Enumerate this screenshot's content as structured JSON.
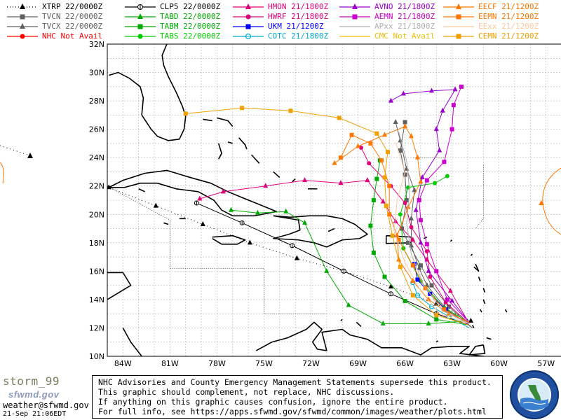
{
  "legend": [
    {
      "label": "XTRP 22/0000Z",
      "color": "#000000",
      "marker": "tri",
      "dash": "1,3"
    },
    {
      "label": "TVCN 22/0000Z",
      "color": "#606060",
      "marker": "sq",
      "dash": ""
    },
    {
      "label": "TVCX 22/0000Z",
      "color": "#606060",
      "marker": "tri",
      "dash": ""
    },
    {
      "label": "NHC Not Avail",
      "color": "#ff0000",
      "marker": "circ",
      "dash": ""
    },
    {
      "label": "CLP5 22/0000Z",
      "color": "#000000",
      "marker": "clp",
      "dash": ""
    },
    {
      "label": "TABD 22/0000Z",
      "color": "#00aa00",
      "marker": "tri",
      "dash": ""
    },
    {
      "label": "TABM 22/0000Z",
      "color": "#00aa00",
      "marker": "sq",
      "dash": ""
    },
    {
      "label": "TABS 22/0000Z",
      "color": "#00cc00",
      "marker": "circ",
      "dash": ""
    },
    {
      "label": "HMON 21/1800Z",
      "color": "#e0007a",
      "marker": "tri",
      "dash": ""
    },
    {
      "label": "HWRF 21/1800Z",
      "color": "#e0007a",
      "marker": "circ",
      "dash": ""
    },
    {
      "label": "UKM  21/1200Z",
      "color": "#0000ff",
      "marker": "sq",
      "dash": ""
    },
    {
      "label": "COTC 21/1800Z",
      "color": "#00aacc",
      "marker": "ring",
      "dash": ""
    },
    {
      "label": "AVNO 21/1800Z",
      "color": "#9900cc",
      "marker": "tri",
      "dash": ""
    },
    {
      "label": "AEMN 21/1800Z",
      "color": "#cc00cc",
      "marker": "sq",
      "dash": ""
    },
    {
      "label": "APxx 21/1800Z",
      "color": "#b0b0b0",
      "marker": "none",
      "dash": ""
    },
    {
      "label": "CMC  Not Avail",
      "color": "#f0c000",
      "marker": "none",
      "dash": ""
    },
    {
      "label": "EECF 21/1200Z",
      "color": "#ff7700",
      "marker": "tri",
      "dash": ""
    },
    {
      "label": "EEMN 21/1200Z",
      "color": "#ff7700",
      "marker": "sq",
      "dash": ""
    },
    {
      "label": "EExx 21/1200Z",
      "color": "#ffc8a0",
      "marker": "none",
      "dash": ""
    },
    {
      "label": "CEMN 21/1200Z",
      "color": "#f0a000",
      "marker": "sq",
      "dash": ""
    }
  ],
  "axes": {
    "lon_labels": [
      "84W",
      "81W",
      "78W",
      "75W",
      "72W",
      "69W",
      "66W",
      "63W",
      "60W",
      "57W"
    ],
    "lat_labels": [
      "32N",
      "30N",
      "28N",
      "26N",
      "24N",
      "22N",
      "20N",
      "18N",
      "16N",
      "14N",
      "12N",
      "10N"
    ],
    "lon_range": [
      -85,
      -56
    ],
    "lat_range": [
      10,
      32
    ]
  },
  "footer": {
    "line1": "NHC Advisories and County Emergency Management Statements supersede this product.",
    "line2": "This graphic should complement, not replace, NHC discussions.",
    "line3": "If anything on this graphic causes confusion, ignore the entire product.",
    "line4": "For full info, see  https://apps.sfwmd.gov/sfwmd/common/images/weather/plots.html"
  },
  "storm_name": "storm_99",
  "brand": "sfwmd.gov",
  "email": "weather@sfwmd.gov",
  "timestamp": "21-Sep 21:06EDT",
  "seal_icon": "south-florida-water-management-district-seal",
  "tracks": [
    {
      "model": "XTRP",
      "color": "#000000",
      "dash": "1,4",
      "marker": "tri",
      "pts": [
        [
          -88.2,
          23.5
        ],
        [
          -86.2,
          24.1
        ],
        [
          -84.9,
          21.9
        ],
        [
          -81.9,
          20.6
        ],
        [
          -78.9,
          19.3
        ],
        [
          -75.9,
          18.0
        ],
        [
          -72.9,
          16.9
        ],
        [
          -69.9,
          16.0
        ],
        [
          -66.9,
          14.9
        ],
        [
          -64.0,
          13.7
        ],
        [
          -61.8,
          12.5
        ]
      ]
    },
    {
      "model": "CLP5",
      "color": "#000000",
      "dash": "",
      "marker": "clp",
      "pts": [
        [
          -61.9,
          12.2
        ],
        [
          -64.0,
          13.0
        ],
        [
          -66.9,
          14.4
        ],
        [
          -69.9,
          16.0
        ],
        [
          -73.2,
          17.8
        ],
        [
          -76.4,
          19.4
        ],
        [
          -79.3,
          20.8
        ]
      ]
    },
    {
      "model": "TVCN",
      "color": "#606060",
      "dash": "",
      "marker": "sq",
      "pts": [
        [
          -61.7,
          12.0
        ],
        [
          -63.2,
          13.5
        ],
        [
          -64.3,
          15.0
        ],
        [
          -65.0,
          16.4
        ],
        [
          -65.8,
          18.0
        ],
        [
          -66.2,
          19.0
        ],
        [
          -65.9,
          21.0
        ],
        [
          -66.0,
          22.8
        ],
        [
          -66.3,
          24.5
        ],
        [
          -66.0,
          26.5
        ]
      ]
    },
    {
      "model": "TVCX",
      "color": "#606060",
      "dash": "",
      "marker": "tri",
      "pts": [
        [
          -61.7,
          12.0
        ],
        [
          -63.5,
          13.5
        ],
        [
          -64.6,
          15.0
        ],
        [
          -65.1,
          16.2
        ],
        [
          -65.6,
          17.8
        ],
        [
          -65.6,
          19.7
        ],
        [
          -65.4,
          21.7
        ],
        [
          -65.9,
          23.2
        ],
        [
          -66.3,
          25.2
        ],
        [
          -66.6,
          26.5
        ]
      ]
    },
    {
      "model": "TABD",
      "color": "#00aa00",
      "dash": "",
      "marker": "tri",
      "pts": [
        [
          -61.9,
          12.5
        ],
        [
          -64.5,
          12.3
        ],
        [
          -67.4,
          12.3
        ],
        [
          -69.6,
          13.6
        ],
        [
          -71.0,
          16.0
        ],
        [
          -72.4,
          19.4
        ],
        [
          -73.6,
          20.2
        ],
        [
          -75.4,
          20.1
        ],
        [
          -77.1,
          20.3
        ]
      ]
    },
    {
      "model": "TABM",
      "color": "#00aa00",
      "dash": "",
      "marker": "sq",
      "pts": [
        [
          -61.9,
          12.2
        ],
        [
          -64.0,
          12.6
        ],
        [
          -66.0,
          13.9
        ],
        [
          -67.3,
          15.6
        ],
        [
          -68.0,
          17.3
        ],
        [
          -68.2,
          19.2
        ],
        [
          -68.0,
          21.0
        ],
        [
          -67.8,
          22.5
        ],
        [
          -67.6,
          23.8
        ]
      ]
    },
    {
      "model": "TABS",
      "color": "#00cc00",
      "dash": "",
      "marker": "circ",
      "pts": [
        [
          -61.9,
          12.4
        ],
        [
          -63.5,
          13.4
        ],
        [
          -65.0,
          15.3
        ],
        [
          -66.1,
          17.6
        ],
        [
          -66.3,
          20.0
        ],
        [
          -65.8,
          21.9
        ],
        [
          -64.1,
          22.2
        ],
        [
          -63.3,
          22.7
        ]
      ]
    },
    {
      "model": "HMON",
      "color": "#e0007a",
      "dash": "",
      "marker": "tri",
      "pts": [
        [
          -61.9,
          12.3
        ],
        [
          -63.1,
          14.6
        ],
        [
          -64.6,
          16.8
        ],
        [
          -65.5,
          18.2
        ],
        [
          -66.6,
          19.5
        ],
        [
          -67.4,
          20.9
        ],
        [
          -68.4,
          22.4
        ],
        [
          -70.1,
          22.2
        ],
        [
          -72.4,
          22.4
        ],
        [
          -74.9,
          22.0
        ],
        [
          -77.6,
          21.6
        ],
        [
          -79.1,
          21.1
        ]
      ]
    },
    {
      "model": "HWRF",
      "color": "#e0007a",
      "dash": "",
      "marker": "circ",
      "pts": [
        [
          -61.9,
          12.3
        ],
        [
          -63.4,
          13.8
        ],
        [
          -64.4,
          15.6
        ],
        [
          -64.6,
          17.4
        ],
        [
          -65.6,
          19.1
        ],
        [
          -66.0,
          20.8
        ],
        [
          -66.9,
          22.0
        ],
        [
          -68.3,
          23.6
        ],
        [
          -68.8,
          24.7
        ]
      ]
    },
    {
      "model": "UKM",
      "color": "#0000ff",
      "dash": "",
      "marker": "sq",
      "pts": [
        [
          -61.9,
          12.2
        ],
        [
          -63.4,
          13.3
        ],
        [
          -64.4,
          14.4
        ],
        [
          -65.2,
          15.4
        ],
        [
          -65.4,
          16.5
        ]
      ]
    },
    {
      "model": "COTC",
      "color": "#00aacc",
      "dash": "",
      "marker": "ring",
      "pts": [
        [
          -61.9,
          12.0
        ],
        [
          -63.2,
          12.8
        ],
        [
          -64.3,
          13.5
        ],
        [
          -65.2,
          14.3
        ],
        [
          -65.5,
          15.2
        ]
      ]
    },
    {
      "model": "AVNO",
      "color": "#9900cc",
      "dash": "",
      "marker": "tri",
      "pts": [
        [
          -61.9,
          12.4
        ],
        [
          -63.0,
          13.9
        ],
        [
          -64.5,
          16.0
        ],
        [
          -65.0,
          18.0
        ],
        [
          -65.3,
          20.3
        ],
        [
          -64.9,
          22.6
        ],
        [
          -63.8,
          24.5
        ],
        [
          -64.0,
          26.0
        ],
        [
          -63.6,
          27.3
        ],
        [
          -62.8,
          28.8
        ],
        [
          -64.3,
          28.7
        ],
        [
          -66.1,
          28.5
        ],
        [
          -66.9,
          28.0
        ]
      ]
    },
    {
      "model": "AEMN",
      "color": "#cc00cc",
      "dash": "",
      "marker": "sq",
      "pts": [
        [
          -61.9,
          12.4
        ],
        [
          -63.3,
          14.0
        ],
        [
          -64.0,
          16.0
        ],
        [
          -64.6,
          17.9
        ],
        [
          -65.0,
          19.6
        ],
        [
          -65.1,
          21.0
        ],
        [
          -64.6,
          22.4
        ],
        [
          -63.5,
          23.7
        ],
        [
          -63.0,
          26.0
        ],
        [
          -62.9,
          27.7
        ],
        [
          -62.4,
          29.0
        ]
      ]
    },
    {
      "model": "EECF",
      "color": "#ff7700",
      "dash": "",
      "marker": "tri",
      "pts": [
        [
          -61.9,
          12.4
        ],
        [
          -63.2,
          13.0
        ],
        [
          -64.5,
          14.0
        ],
        [
          -65.5,
          15.3
        ],
        [
          -66.4,
          16.8
        ],
        [
          -66.5,
          18.5
        ],
        [
          -65.8,
          20.5
        ],
        [
          -65.0,
          22.3
        ],
        [
          -65.2,
          24.0
        ],
        [
          -65.6,
          25.5
        ],
        [
          -66.0,
          26.2
        ],
        [
          -67.3,
          25.6
        ],
        [
          -69.0,
          24.8
        ],
        [
          -70.5,
          23.6
        ]
      ]
    },
    {
      "model": "EEMN",
      "color": "#ff7700",
      "dash": "",
      "marker": "sq",
      "pts": [
        [
          -61.9,
          12.3
        ],
        [
          -63.5,
          13.3
        ],
        [
          -64.7,
          14.8
        ],
        [
          -65.5,
          16.4
        ],
        [
          -66.4,
          18.2
        ],
        [
          -67.0,
          20.0
        ],
        [
          -67.0,
          22.0
        ],
        [
          -67.5,
          23.8
        ],
        [
          -68.2,
          25.0
        ],
        [
          -69.4,
          25.6
        ],
        [
          -70.1,
          24.0
        ]
      ]
    },
    {
      "model": "CEMN",
      "color": "#f0a000",
      "dash": "",
      "marker": "sq",
      "pts": [
        [
          -61.9,
          12.2
        ],
        [
          -64.0,
          12.9
        ],
        [
          -65.5,
          14.3
        ],
        [
          -66.3,
          16.3
        ],
        [
          -66.8,
          18.5
        ],
        [
          -67.2,
          20.6
        ],
        [
          -67.3,
          22.6
        ],
        [
          -67.1,
          24.4
        ],
        [
          -67.8,
          25.7
        ],
        [
          -70.2,
          26.8
        ],
        [
          -73.3,
          27.3
        ],
        [
          -76.4,
          27.5
        ],
        [
          -80.0,
          27.1
        ]
      ]
    },
    {
      "model": "APxx",
      "color": "#b0b0b0",
      "dash": "",
      "marker": "none",
      "pts": [
        [
          -61.9,
          12.3
        ],
        [
          -63.6,
          13.2
        ],
        [
          -64.8,
          15.0
        ],
        [
          -65.6,
          17.2
        ],
        [
          -65.9,
          19.4
        ],
        [
          -65.7,
          21.6
        ],
        [
          -65.9,
          23.8
        ],
        [
          -66.4,
          25.8
        ]
      ]
    },
    {
      "model": "EExx",
      "color": "#ffc8a0",
      "dash": "",
      "marker": "none",
      "pts": [
        [
          -61.9,
          12.3
        ],
        [
          -63.8,
          13.0
        ],
        [
          -65.0,
          14.6
        ],
        [
          -66.0,
          16.6
        ],
        [
          -66.7,
          18.8
        ],
        [
          -66.5,
          21.0
        ],
        [
          -66.0,
          23.0
        ],
        [
          -66.6,
          25.1
        ]
      ]
    }
  ]
}
